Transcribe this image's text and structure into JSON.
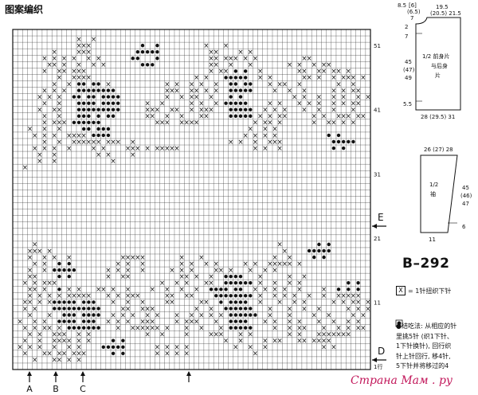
{
  "title": "图案编织",
  "model": "B–292",
  "watermark": "Страна Мам . ру",
  "row_numbers": [
    "51",
    "41",
    "31",
    "21",
    "11",
    "1行"
  ],
  "markers": {
    "E": "E",
    "D": "D"
  },
  "bottom_markers": [
    "A",
    "B",
    "C"
  ],
  "legend": {
    "symbol": "X",
    "text": "= 1针扭织下针"
  },
  "instructions": [
    "●结吃法: 从相应的针",
    "里挑5针 (织1下针、",
    "1下针换针), 回行织",
    "针上针回行, 移4针,",
    "5下针并将移过的4"
  ],
  "schematic_front": {
    "top_left": "8.5",
    "top_mid": "[6]",
    "top_mid2": "(6.5)",
    "top_mid3": "7",
    "top_right": "19.5",
    "top_right2": "(20.5) 21.5",
    "left_top": "2",
    "left_top2": "7",
    "left_mid": "45",
    "left_mid2": "(47)",
    "left_mid3": "49",
    "left_bottom": "5.5",
    "label1": "1/2 前身片",
    "label2": "与后身",
    "label3": "片",
    "bottom": "28 (29.5) 31"
  },
  "schematic_sleeve": {
    "top": "26 (27) 28",
    "label1": "1/2",
    "label2": "袖",
    "right_mid": "45",
    "right_mid2": "(46)",
    "right_mid3": "47",
    "right_bottom": "6",
    "bottom": "11"
  },
  "chart_data": {
    "type": "heatmap",
    "rows": 53,
    "cols": 73,
    "symbols": [
      "x = twisted knit stitch",
      "o = bobble"
    ],
    "cells": [
      "........................................................................",
      ".............x..x...............................................................",
      ".............xxx..........o..o.........x...x............................",
      "........x....xxx.........ooooo..........xx....x.x.......................",
      "......x.x.x.x..x.x......oo...o..........xx.xxx.x.x.........xx...........",
      ".......xx.x..x..x.x.......ooo...........xx..x...x.......x.x..x.xx..........",
      "......x..xx.xxx.........................x.xx.o.o..x.......xx..xx.xx.x......",
      ".........x..xxxx.....................x.x...ooooo..x.x......xx.x..x.xxx.x..",
      "........x..x.oo.oo.x...........x.x..x.x..x..oo.oo...x.xx..x.......x..x.....",
      "......x.x.x..oooooooo..........xxx..xx.x.x..ooooo....x..x..x.....x.x.xx...",
      ".....x.x.x..oo.oo.oooo.........x..x.xx..x...o.o..........x.x..x..x.x..x.x.",
      "......x..x...oooo.oooo.....x..x.....x.x..x.ooooo....x.x...x.x.x..x.x.xx...",
      ".....x..xx...ooooooooo.....xxx..xx..x.xxx...ooooo..x.x.x...x..x..x...x...",
      "......x..x...ooo.o.oo......xx..x..x...xx....ooooo.x.x.xx.....x.x..xxx.xx..",
      "......x.xxx.oooooo...........xxx..xxxx...........x.xx.x......x..xx.x.x...",
      "...x..x..x....oo.ooo............................x..x.x..................",
      "....x.x.x..xxxx.oooo...........................x.x.x.x..........o.o.......",
      "......x..x..xxxxxx.xxx..x...................x.x..x..xxx..........ooooo.......",
      "....x.x.x..x....x.x....xxx.x.xxxxx...............x.x..x..........o.o........",
      ".....x..x........x.x....x.....................................................",
      ".....x..x...........x........................................................",
      "..x..........................................................................",
      "........................................................................",
      "........................................................................",
      "........................................................................",
      "........................................................................",
      "........................................................................",
      "........................................................................",
      "........................................................................",
      "........................................................................",
      "........................................................................",
      "........................................................................",
      "........................................................................",
      "....x.................................................x.......o.o........",
      "...xxx.x...............................................x....ooooo........",
      "...x..x.x..x..........xxxxx.......x...x..............x..x....o.o...........",
      "....x.x..o.o.........x.x..x.......x.x..x.x.....x.x..xxxxx.x..................",
      "...x..x.ooooo......x.x.x..x.....x.x.x....xx.x...x..x.x......................",
      "...xx....o.o.......x..xx..........xx.x..x..oooo...x.....x..x...............",
      "..x.x.xxx.....................x..x.x...xx..oooooo.x..x..x.x.........o.o.......",
      "...xx.x..o.x.x...xx.x..x....x..x..x..x..oooo.oo..x.x.x.x..x....x..o.o.o....",
      "...x.x.x.x.xxxxx...x.x.xxx.....xx..xx....oooooooo.x..x.x.x..x..x..xxxxx..",
      "..xx.x.xooooo.ooo...x..x..x....xx.....xx..o.oooo..x...x..x.x.....x.x.xx.x..",
      "..x.x...oooooooooo....xx..xxx........x..x..oooooo...x...x..x..x.....x.x.xx.",
      "...x...x..ooo.oooo..x.x.x..x.x...x..x.x.x.x.oooooo..x...x....x..x....x.x.x..",
      ".x..x.x..oooo.ooo..x.x.x..xxx....x.xxx...x..oooo...x.x..x.x...x..x..x.x..x..",
      "..x.x.xx.x.ooooooo...x..xxxxxx.x...x..x...x.ooooo....x..x.xx...x..x.x.xx.x.",
      "...x.x..xxx..x.x...........x..x....x....xxx...x.x.......x.x...xxxxxxx.....",
      "..x..x..xxxx.x.x....o.o....................x..x....x.xx...xx.xxxx..........",
      ".x.x.x..x..x.x....ooooo......x.x.x.x.........x..x..x...........x.x.......",
      "..x...xx.xx.xxx.....o.o......x.x.x.x.............x.......................",
      "....x...xx.x.x................................................................",
      "........................................................................"
    ]
  }
}
